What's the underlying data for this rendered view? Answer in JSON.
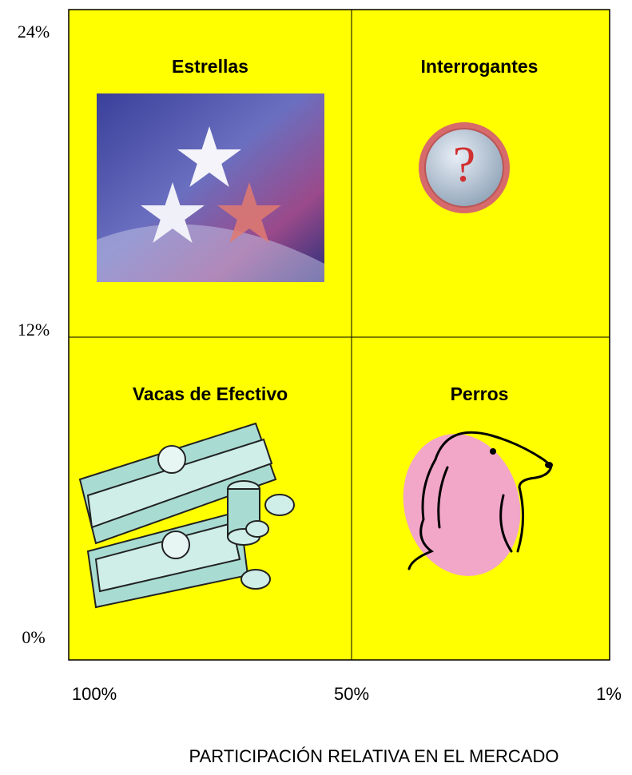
{
  "y_axis": {
    "labels": [
      "24%",
      "12%",
      "0%"
    ]
  },
  "x_axis": {
    "labels": [
      "100%",
      "50%",
      "1%"
    ],
    "title": "PARTICIPACIÓN RELATIVA EN EL MERCADO"
  },
  "quadrants": [
    {
      "title": "Estrellas"
    },
    {
      "title": "Interrogantes"
    },
    {
      "title": "Vacas de Efectivo"
    },
    {
      "title": "Perros"
    }
  ]
}
